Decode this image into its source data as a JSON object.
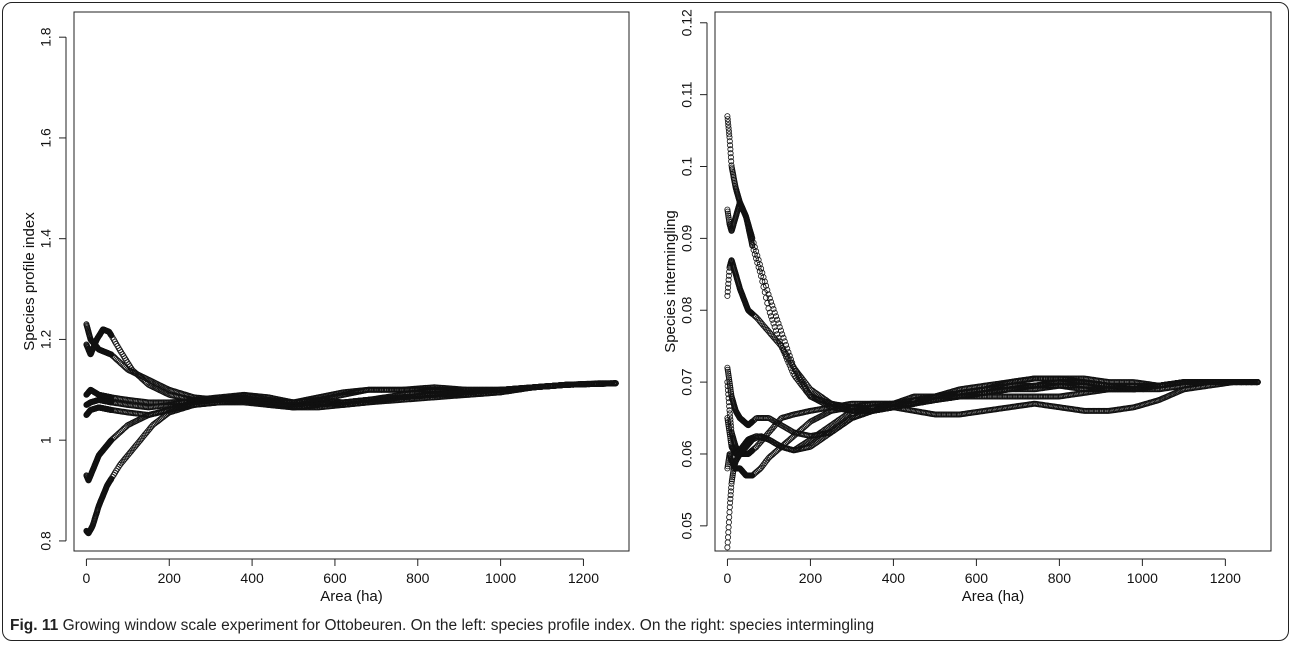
{
  "figure": {
    "caption_label": "Fig. 11",
    "caption_text": "Growing window scale experiment for Ottobeuren. On the left: species profile index. On the right: species intermingling"
  },
  "chart_data": [
    {
      "type": "scatter",
      "title": "",
      "xlabel": "Area (ha)",
      "ylabel": "Species profile index",
      "xlim": [
        -30,
        1310
      ],
      "ylim": [
        0.78,
        1.85
      ],
      "xticks": [
        0,
        200,
        400,
        600,
        800,
        1000,
        1200
      ],
      "yticks": [
        0.8,
        1.0,
        1.2,
        1.4,
        1.6,
        1.8
      ],
      "marker": "open-circle",
      "grid": false,
      "series": [
        {
          "x": [
            0,
            10,
            30,
            60,
            100,
            150,
            200,
            260,
            320,
            380,
            440,
            500,
            560,
            620,
            680,
            760,
            840,
            920,
            1000,
            1080,
            1160,
            1240,
            1280
          ],
          "y": [
            1.23,
            1.2,
            1.18,
            1.17,
            1.14,
            1.12,
            1.1,
            1.085,
            1.08,
            1.085,
            1.075,
            1.075,
            1.08,
            1.075,
            1.08,
            1.09,
            1.1,
            1.1,
            1.1,
            1.105,
            1.11,
            1.113,
            1.113
          ]
        },
        {
          "x": [
            0,
            10,
            25,
            40,
            55,
            80,
            110,
            150,
            200,
            260,
            320,
            380,
            440,
            500,
            560,
            620,
            680,
            760,
            840,
            920,
            1000,
            1080,
            1160,
            1240,
            1280
          ],
          "y": [
            1.19,
            1.17,
            1.2,
            1.22,
            1.215,
            1.18,
            1.14,
            1.11,
            1.09,
            1.08,
            1.08,
            1.09,
            1.085,
            1.075,
            1.08,
            1.09,
            1.1,
            1.1,
            1.105,
            1.1,
            1.1,
            1.105,
            1.11,
            1.112,
            1.113
          ]
        },
        {
          "x": [
            0,
            10,
            30,
            60,
            100,
            150,
            200,
            260,
            320,
            380,
            440,
            500,
            560,
            620,
            680,
            760,
            840,
            920,
            1000,
            1080,
            1160,
            1240,
            1280
          ],
          "y": [
            1.09,
            1.1,
            1.09,
            1.085,
            1.08,
            1.075,
            1.075,
            1.078,
            1.085,
            1.09,
            1.08,
            1.075,
            1.085,
            1.095,
            1.1,
            1.1,
            1.1,
            1.095,
            1.1,
            1.105,
            1.11,
            1.112,
            1.113
          ]
        },
        {
          "x": [
            0,
            10,
            30,
            60,
            100,
            150,
            200,
            260,
            320,
            380,
            440,
            500,
            560,
            620,
            680,
            760,
            840,
            920,
            1000,
            1080,
            1160,
            1240,
            1280
          ],
          "y": [
            1.07,
            1.075,
            1.08,
            1.075,
            1.07,
            1.065,
            1.07,
            1.08,
            1.085,
            1.08,
            1.07,
            1.07,
            1.075,
            1.07,
            1.075,
            1.085,
            1.09,
            1.095,
            1.1,
            1.105,
            1.11,
            1.112,
            1.113
          ]
        },
        {
          "x": [
            0,
            10,
            30,
            60,
            100,
            150,
            200,
            260,
            320,
            380,
            440,
            500,
            560,
            620,
            680,
            760,
            840,
            920,
            1000,
            1080,
            1160,
            1240,
            1280
          ],
          "y": [
            1.05,
            1.06,
            1.065,
            1.06,
            1.055,
            1.05,
            1.06,
            1.075,
            1.08,
            1.08,
            1.075,
            1.065,
            1.065,
            1.07,
            1.075,
            1.08,
            1.085,
            1.09,
            1.095,
            1.105,
            1.11,
            1.112,
            1.113
          ]
        },
        {
          "x": [
            0,
            5,
            15,
            30,
            60,
            100,
            150,
            200,
            260,
            320,
            380,
            440,
            500,
            560,
            620,
            680,
            760,
            840,
            920,
            1000,
            1080,
            1160,
            1240,
            1280
          ],
          "y": [
            0.93,
            0.92,
            0.94,
            0.97,
            1.0,
            1.03,
            1.05,
            1.06,
            1.07,
            1.075,
            1.078,
            1.07,
            1.065,
            1.07,
            1.075,
            1.08,
            1.085,
            1.09,
            1.09,
            1.095,
            1.105,
            1.11,
            1.112,
            1.113
          ]
        },
        {
          "x": [
            0,
            5,
            15,
            30,
            50,
            80,
            120,
            160,
            200,
            260,
            320,
            380,
            440,
            500,
            560,
            620,
            680,
            760,
            840,
            920,
            1000,
            1080,
            1160,
            1240,
            1280
          ],
          "y": [
            0.82,
            0.815,
            0.83,
            0.87,
            0.91,
            0.95,
            0.99,
            1.03,
            1.055,
            1.07,
            1.075,
            1.075,
            1.07,
            1.065,
            1.07,
            1.075,
            1.08,
            1.085,
            1.09,
            1.095,
            1.1,
            1.105,
            1.11,
            1.112,
            1.113
          ]
        }
      ]
    },
    {
      "type": "scatter",
      "title": "",
      "xlabel": "Area (ha)",
      "ylabel": "Species intermingling",
      "xlim": [
        -30,
        1310
      ],
      "ylim": [
        0.0465,
        0.1215
      ],
      "xticks": [
        0,
        200,
        400,
        600,
        800,
        1000,
        1200
      ],
      "yticks": [
        0.05,
        0.06,
        0.07,
        0.08,
        0.09,
        0.1,
        0.11,
        0.12
      ],
      "marker": "open-circle",
      "grid": false,
      "series": [
        {
          "x": [
            0,
            5,
            10,
            20,
            30,
            45,
            60,
            80,
            100,
            130,
            160,
            200,
            250,
            300,
            350,
            400,
            450,
            500,
            560,
            620,
            680,
            740,
            800,
            860,
            920,
            980,
            1040,
            1100,
            1160,
            1220,
            1280
          ],
          "y": [
            0.107,
            0.104,
            0.1,
            0.097,
            0.095,
            0.093,
            0.09,
            0.086,
            0.082,
            0.077,
            0.072,
            0.068,
            0.0665,
            0.066,
            0.066,
            0.0665,
            0.067,
            0.0675,
            0.068,
            0.0685,
            0.069,
            0.0695,
            0.07,
            0.07,
            0.0695,
            0.0695,
            0.0695,
            0.07,
            0.07,
            0.07,
            0.07
          ]
        },
        {
          "x": [
            0,
            5,
            10,
            20,
            30,
            45,
            60,
            80,
            100,
            130,
            160,
            200,
            250,
            300,
            350,
            400,
            450,
            500,
            560,
            620,
            680,
            740,
            800,
            860,
            920,
            980,
            1040,
            1100,
            1160,
            1220,
            1280
          ],
          "y": [
            0.094,
            0.092,
            0.091,
            0.093,
            0.095,
            0.093,
            0.089,
            0.085,
            0.08,
            0.075,
            0.071,
            0.068,
            0.067,
            0.0665,
            0.066,
            0.0665,
            0.067,
            0.068,
            0.0685,
            0.069,
            0.07,
            0.0705,
            0.0705,
            0.07,
            0.0695,
            0.069,
            0.0695,
            0.07,
            0.07,
            0.07,
            0.07
          ]
        },
        {
          "x": [
            0,
            5,
            10,
            20,
            30,
            50,
            70,
            100,
            130,
            160,
            200,
            250,
            300,
            350,
            400,
            450,
            500,
            560,
            620,
            680,
            740,
            800,
            860,
            920,
            980,
            1040,
            1100,
            1160,
            1220,
            1280
          ],
          "y": [
            0.082,
            0.086,
            0.087,
            0.085,
            0.083,
            0.08,
            0.079,
            0.077,
            0.075,
            0.072,
            0.069,
            0.067,
            0.066,
            0.066,
            0.0665,
            0.066,
            0.0655,
            0.0655,
            0.066,
            0.0665,
            0.067,
            0.0665,
            0.066,
            0.066,
            0.0665,
            0.0675,
            0.069,
            0.0695,
            0.07,
            0.07
          ]
        },
        {
          "x": [
            0,
            5,
            10,
            20,
            30,
            50,
            70,
            100,
            130,
            160,
            200,
            250,
            300,
            350,
            400,
            450,
            500,
            560,
            620,
            680,
            740,
            800,
            860,
            920,
            980,
            1040,
            1100,
            1160,
            1220,
            1280
          ],
          "y": [
            0.072,
            0.07,
            0.068,
            0.066,
            0.065,
            0.064,
            0.065,
            0.065,
            0.064,
            0.063,
            0.0625,
            0.063,
            0.065,
            0.066,
            0.067,
            0.067,
            0.068,
            0.069,
            0.0695,
            0.07,
            0.0705,
            0.0705,
            0.0705,
            0.07,
            0.07,
            0.0695,
            0.07,
            0.07,
            0.07,
            0.07
          ]
        },
        {
          "x": [
            0,
            5,
            10,
            20,
            30,
            50,
            70,
            100,
            130,
            160,
            200,
            250,
            300,
            350,
            400,
            450,
            500,
            560,
            620,
            680,
            740,
            800,
            860,
            920,
            980,
            1040,
            1100,
            1160,
            1220,
            1280
          ],
          "y": [
            0.07,
            0.066,
            0.063,
            0.061,
            0.06,
            0.06,
            0.061,
            0.063,
            0.065,
            0.0655,
            0.066,
            0.0665,
            0.067,
            0.067,
            0.067,
            0.0675,
            0.068,
            0.068,
            0.0685,
            0.069,
            0.0695,
            0.07,
            0.07,
            0.0695,
            0.069,
            0.069,
            0.0695,
            0.07,
            0.07,
            0.07
          ]
        },
        {
          "x": [
            0,
            5,
            10,
            20,
            30,
            50,
            70,
            100,
            130,
            160,
            200,
            250,
            300,
            350,
            400,
            450,
            500,
            560,
            620,
            680,
            740,
            800,
            860,
            920,
            980,
            1040,
            1100,
            1160,
            1220,
            1280
          ],
          "y": [
            0.065,
            0.063,
            0.061,
            0.06,
            0.0605,
            0.062,
            0.0625,
            0.062,
            0.061,
            0.0605,
            0.062,
            0.064,
            0.066,
            0.0665,
            0.067,
            0.067,
            0.0675,
            0.068,
            0.068,
            0.068,
            0.068,
            0.068,
            0.0685,
            0.069,
            0.069,
            0.0695,
            0.07,
            0.07,
            0.07,
            0.07
          ]
        },
        {
          "x": [
            0,
            5,
            10,
            20,
            30,
            45,
            60,
            80,
            100,
            130,
            160,
            200,
            250,
            300,
            350,
            400,
            450,
            500,
            560,
            620,
            680,
            740,
            800,
            860,
            920,
            980,
            1040,
            1100,
            1160,
            1220,
            1280
          ],
          "y": [
            0.058,
            0.06,
            0.059,
            0.058,
            0.058,
            0.057,
            0.057,
            0.058,
            0.0595,
            0.061,
            0.0625,
            0.0645,
            0.066,
            0.0665,
            0.067,
            0.067,
            0.068,
            0.068,
            0.0685,
            0.069,
            0.0695,
            0.0695,
            0.0695,
            0.069,
            0.069,
            0.069,
            0.0695,
            0.07,
            0.07,
            0.07,
            0.07
          ]
        },
        {
          "x": [
            0,
            3,
            6,
            10,
            15,
            20,
            30,
            45,
            60,
            80,
            100,
            130,
            160,
            200,
            250,
            300,
            350,
            400,
            450,
            500,
            560,
            620,
            680,
            740,
            800,
            860,
            920,
            980,
            1040,
            1100,
            1160,
            1220,
            1280
          ],
          "y": [
            0.047,
            0.05,
            0.053,
            0.056,
            0.058,
            0.059,
            0.06,
            0.061,
            0.062,
            0.0625,
            0.062,
            0.061,
            0.0605,
            0.061,
            0.063,
            0.065,
            0.066,
            0.0665,
            0.067,
            0.0675,
            0.068,
            0.0685,
            0.069,
            0.069,
            0.0695,
            0.0695,
            0.069,
            0.069,
            0.0695,
            0.07,
            0.07,
            0.07,
            0.07
          ]
        }
      ]
    }
  ]
}
